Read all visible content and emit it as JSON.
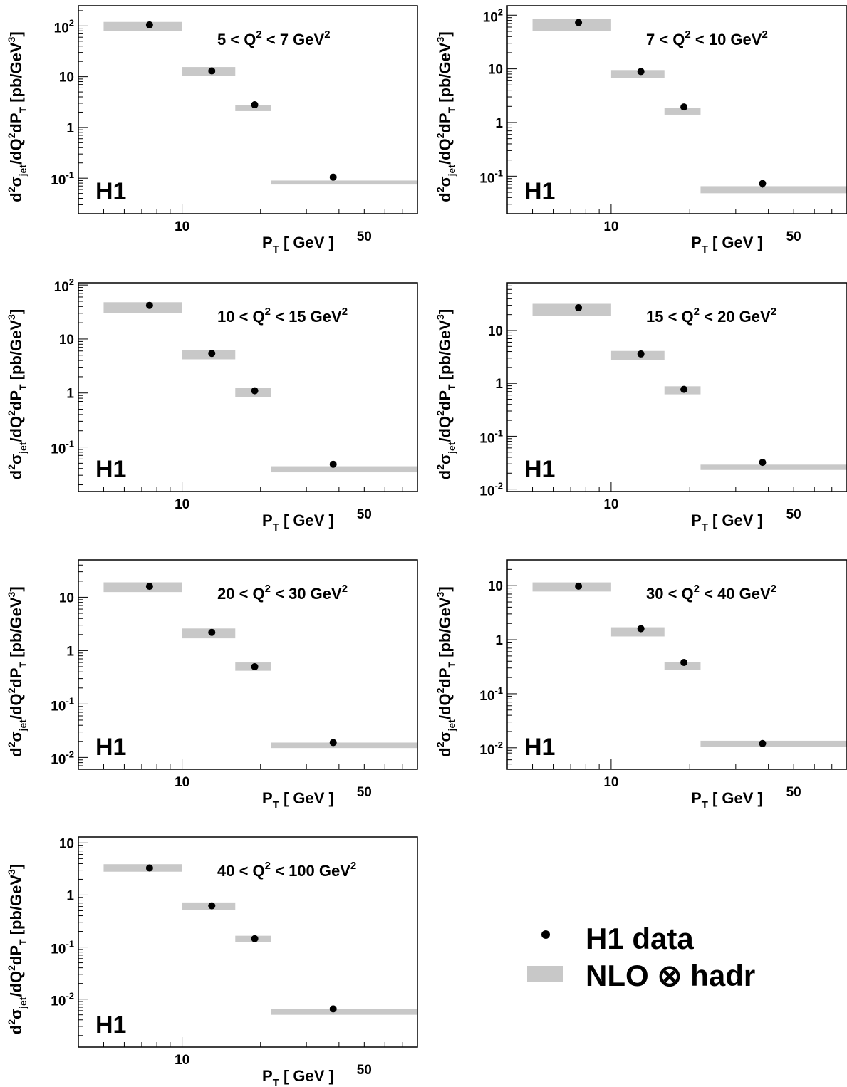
{
  "figure": {
    "legend": {
      "data_label": "H1 data",
      "nlo_label": "NLO ⊗ hadr"
    },
    "colors": {
      "band": "#c8c8c8",
      "marker": "#000000",
      "frame": "#000000"
    }
  },
  "chart_data": [
    {
      "type": "scatter",
      "title": "5 < Q² < 7 GeV²",
      "q2_range": {
        "low": "5",
        "high": "7"
      },
      "experiment_label": "H1",
      "xlabel": "P_T [ GeV ]",
      "ylabel": "d²σ_jet/dQ²dP_T [pb/GeV³]",
      "x_scale": "log",
      "y_scale": "log",
      "xlim": [
        4.0,
        80.0
      ],
      "ylim": [
        0.02,
        250
      ],
      "x_ticklabels": [
        "10",
        "50"
      ],
      "y_ticklabels": [
        "10^-1",
        "1",
        "10",
        "10^2"
      ],
      "x_bins": [
        [
          5,
          10
        ],
        [
          10,
          16
        ],
        [
          16,
          22
        ],
        [
          22,
          80
        ]
      ],
      "series": [
        {
          "name": "H1 data",
          "type": "scatter",
          "x": [
            7.5,
            13,
            19,
            38
          ],
          "y": [
            105,
            13,
            2.8,
            0.105
          ],
          "y_err": [
            5,
            0.6,
            0.15,
            0.006
          ]
        },
        {
          "name": "NLO ⊗ hadr",
          "type": "band",
          "low": [
            80,
            10.5,
            2.1,
            0.075
          ],
          "high": [
            120,
            15.5,
            2.8,
            0.09
          ]
        }
      ]
    },
    {
      "type": "scatter",
      "title": "7 < Q² < 10 GeV²",
      "q2_range": {
        "low": "7",
        "high": "10"
      },
      "experiment_label": "H1",
      "xlabel": "P_T [ GeV ]",
      "ylabel": "d²σ_jet/dQ²dP_T [pb/GeV³]",
      "x_scale": "log",
      "y_scale": "log",
      "xlim": [
        4.0,
        80.0
      ],
      "ylim": [
        0.02,
        150
      ],
      "x_ticklabels": [
        "10",
        "50"
      ],
      "y_ticklabels": [
        "10^-1",
        "1",
        "10",
        "10^2"
      ],
      "x_bins": [
        [
          5,
          10
        ],
        [
          10,
          16
        ],
        [
          16,
          22
        ],
        [
          22,
          80
        ]
      ],
      "series": [
        {
          "name": "H1 data",
          "type": "scatter",
          "x": [
            7.5,
            13,
            19,
            38
          ],
          "y": [
            73,
            8.9,
            1.95,
            0.073
          ],
          "y_err": [
            4,
            0.5,
            0.12,
            0.012
          ]
        },
        {
          "name": "NLO ⊗ hadr",
          "type": "band",
          "low": [
            50,
            6.8,
            1.4,
            0.048
          ],
          "high": [
            85,
            9.5,
            1.85,
            0.065
          ]
        }
      ]
    },
    {
      "type": "scatter",
      "title": "10 < Q² < 15 GeV²",
      "q2_range": {
        "low": "10",
        "high": "15"
      },
      "experiment_label": "H1",
      "xlabel": "P_T [ GeV ]",
      "ylabel": "d²σ_jet/dQ²dP_T [pb/GeV³]",
      "x_scale": "log",
      "y_scale": "log",
      "xlim": [
        4.0,
        80.0
      ],
      "ylim": [
        0.015,
        110
      ],
      "x_ticklabels": [
        "10",
        "50"
      ],
      "y_ticklabels": [
        "10^-1",
        "1",
        "10",
        "10^2"
      ],
      "x_bins": [
        [
          5,
          10
        ],
        [
          10,
          16
        ],
        [
          16,
          22
        ],
        [
          22,
          80
        ]
      ],
      "series": [
        {
          "name": "H1 data",
          "type": "scatter",
          "x": [
            7.5,
            13,
            19,
            38
          ],
          "y": [
            42,
            5.4,
            1.1,
            0.048
          ],
          "y_err": [
            2.5,
            0.3,
            0.07,
            0.006
          ]
        },
        {
          "name": "NLO ⊗ hadr",
          "type": "band",
          "low": [
            30,
            4.2,
            0.85,
            0.034
          ],
          "high": [
            48,
            6.2,
            1.25,
            0.044
          ]
        }
      ]
    },
    {
      "type": "scatter",
      "title": "15 < Q² < 20 GeV²",
      "q2_range": {
        "low": "15",
        "high": "20"
      },
      "experiment_label": "H1",
      "xlabel": "P_T [ GeV ]",
      "ylabel": "d²σ_jet/dQ²dP_T [pb/GeV³]",
      "x_scale": "log",
      "y_scale": "log",
      "xlim": [
        4.0,
        80.0
      ],
      "ylim": [
        0.009,
        80
      ],
      "x_ticklabels": [
        "10",
        "50"
      ],
      "y_ticklabels": [
        "10^-2",
        "10^-1",
        "1",
        "10"
      ],
      "x_bins": [
        [
          5,
          10
        ],
        [
          10,
          16
        ],
        [
          16,
          22
        ],
        [
          22,
          80
        ]
      ],
      "series": [
        {
          "name": "H1 data",
          "type": "scatter",
          "x": [
            7.5,
            13,
            19,
            38
          ],
          "y": [
            27,
            3.6,
            0.77,
            0.032
          ],
          "y_err": [
            1.5,
            0.2,
            0.05,
            0.003
          ]
        },
        {
          "name": "NLO ⊗ hadr",
          "type": "band",
          "low": [
            19,
            2.8,
            0.62,
            0.023
          ],
          "high": [
            32,
            4.1,
            0.88,
            0.029
          ]
        }
      ]
    },
    {
      "type": "scatter",
      "title": "20 < Q² < 30 GeV²",
      "q2_range": {
        "low": "20",
        "high": "30"
      },
      "experiment_label": "H1",
      "xlabel": "P_T [ GeV ]",
      "ylabel": "d²σ_jet/dQ²dP_T [pb/GeV³]",
      "x_scale": "log",
      "y_scale": "log",
      "xlim": [
        4.0,
        80.0
      ],
      "ylim": [
        0.006,
        50
      ],
      "x_ticklabels": [
        "10",
        "50"
      ],
      "y_ticklabels": [
        "10^-2",
        "10^-1",
        "1",
        "10"
      ],
      "x_bins": [
        [
          5,
          10
        ],
        [
          10,
          16
        ],
        [
          16,
          22
        ],
        [
          22,
          80
        ]
      ],
      "series": [
        {
          "name": "H1 data",
          "type": "scatter",
          "x": [
            7.5,
            13,
            19,
            38
          ],
          "y": [
            16,
            2.2,
            0.5,
            0.019
          ],
          "y_err": [
            0.9,
            0.12,
            0.03,
            0.0015
          ]
        },
        {
          "name": "NLO ⊗ hadr",
          "type": "band",
          "low": [
            12.5,
            1.7,
            0.42,
            0.015
          ],
          "high": [
            19,
            2.6,
            0.6,
            0.019
          ]
        }
      ]
    },
    {
      "type": "scatter",
      "title": "30 < Q² < 40 GeV²",
      "q2_range": {
        "low": "30",
        "high": "40"
      },
      "experiment_label": "H1",
      "xlabel": "P_T [ GeV ]",
      "ylabel": "d²σ_jet/dQ²dP_T [pb/GeV³]",
      "x_scale": "log",
      "y_scale": "log",
      "xlim": [
        4.0,
        80.0
      ],
      "ylim": [
        0.004,
        30
      ],
      "x_ticklabels": [
        "10",
        "50"
      ],
      "y_ticklabels": [
        "10^-2",
        "10^-1",
        "1",
        "10"
      ],
      "x_bins": [
        [
          5,
          10
        ],
        [
          10,
          16
        ],
        [
          16,
          22
        ],
        [
          22,
          80
        ]
      ],
      "series": [
        {
          "name": "H1 data",
          "type": "scatter",
          "x": [
            7.5,
            13,
            19,
            38
          ],
          "y": [
            9.8,
            1.6,
            0.38,
            0.012
          ],
          "y_err": [
            0.5,
            0.09,
            0.025,
            0.001
          ]
        },
        {
          "name": "NLO ⊗ hadr",
          "type": "band",
          "low": [
            7.8,
            1.15,
            0.28,
            0.0105
          ],
          "high": [
            11.5,
            1.7,
            0.38,
            0.0135
          ]
        }
      ]
    },
    {
      "type": "scatter",
      "title": "40 < Q² < 100 GeV²",
      "q2_range": {
        "low": "40",
        "high": "100"
      },
      "experiment_label": "H1",
      "xlabel": "P_T [ GeV ]",
      "ylabel": "d²σ_jet/dQ²dP_T [pb/GeV³]",
      "x_scale": "log",
      "y_scale": "log",
      "xlim": [
        4.0,
        80.0
      ],
      "ylim": [
        0.0012,
        13
      ],
      "x_ticklabels": [
        "10",
        "50"
      ],
      "y_ticklabels": [
        "10^-2",
        "10^-1",
        "1",
        "10"
      ],
      "x_bins": [
        [
          5,
          10
        ],
        [
          10,
          16
        ],
        [
          16,
          22
        ],
        [
          22,
          80
        ]
      ],
      "series": [
        {
          "name": "H1 data",
          "type": "scatter",
          "x": [
            7.5,
            13,
            19,
            38
          ],
          "y": [
            3.3,
            0.62,
            0.145,
            0.0065
          ],
          "y_err": [
            0.18,
            0.035,
            0.009,
            0.0006
          ]
        },
        {
          "name": "NLO ⊗ hadr",
          "type": "band",
          "low": [
            2.8,
            0.52,
            0.125,
            0.005
          ],
          "high": [
            3.9,
            0.72,
            0.165,
            0.0064
          ]
        }
      ]
    }
  ]
}
